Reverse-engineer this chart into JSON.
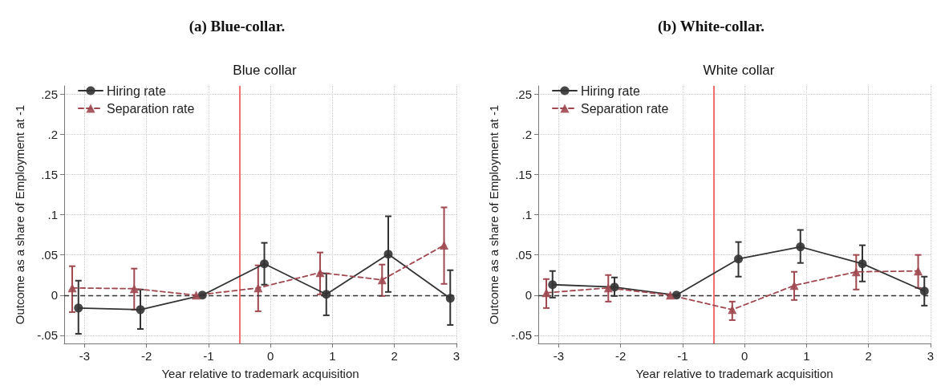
{
  "chart_data": [
    {
      "type": "line",
      "title": "(a) Blue-collar.",
      "subtitle": "Blue collar",
      "xlabel": "Year relative to trademark acquisition",
      "ylabel": "Outcome as a share of Employment at -1",
      "series": [
        {
          "name": "Hiring rate",
          "color": "#333333",
          "marker": "circle",
          "line_style": "solid",
          "x": [
            -3.1,
            -2.1,
            -1.1,
            -0.1,
            0.9,
            1.9,
            2.9
          ],
          "values": [
            -0.016,
            -0.018,
            0,
            0.039,
            0.001,
            0.051,
            -0.004
          ],
          "errors": [
            [
              -0.048,
              0.018
            ],
            [
              -0.042,
              0.007
            ],
            null,
            [
              0.013,
              0.065
            ],
            [
              -0.025,
              0.027
            ],
            [
              0.004,
              0.098
            ],
            [
              -0.037,
              0.031
            ]
          ]
        },
        {
          "name": "Separation rate",
          "color": "#a0484f",
          "marker": "triangle",
          "line_style": "dashed",
          "x": [
            -3.2,
            -2.2,
            -1.2,
            -0.2,
            0.8,
            1.8,
            2.8
          ],
          "values": [
            0.009,
            0.008,
            0,
            0.009,
            0.028,
            0.019,
            0.062
          ],
          "errors": [
            [
              -0.021,
              0.036
            ],
            [
              -0.018,
              0.033
            ],
            null,
            [
              -0.02,
              0.037
            ],
            [
              0.001,
              0.053
            ],
            [
              -0.001,
              0.038
            ],
            [
              0.014,
              0.109
            ]
          ]
        }
      ],
      "xlim": [
        -3.33,
        3
      ],
      "xticks": [
        -3,
        -2,
        -1,
        0,
        1,
        2,
        3
      ],
      "ylim": [
        -0.06,
        0.26
      ],
      "yticks": [
        {
          "value": -0.05,
          "label": "-.05"
        },
        0,
        {
          "value": 0.05,
          "label": ".05"
        },
        {
          "value": 0.1,
          "label": ".1"
        },
        {
          "value": 0.15,
          "label": ".15"
        },
        {
          "value": 0.2,
          "label": ".2"
        },
        {
          "value": 0.25,
          "label": ".25"
        }
      ],
      "ref_lines": [
        {
          "axis": "y",
          "value": 0,
          "color": "#333333",
          "line_style": "dashed"
        },
        {
          "axis": "x",
          "value": -0.5,
          "color": "#f07070",
          "line_style": "solid"
        }
      ],
      "grid": true,
      "legend": "top left"
    },
    {
      "type": "line",
      "title": "(b) White-collar.",
      "subtitle": "White collar",
      "xlabel": "Year relative to trademark acquisition",
      "ylabel": "Outcome as a share of Employment at -1",
      "series": [
        {
          "name": "Hiring rate",
          "color": "#333333",
          "marker": "circle",
          "line_style": "solid",
          "x": [
            -3.1,
            -2.1,
            -1.1,
            -0.1,
            0.9,
            1.9,
            2.9
          ],
          "values": [
            0.013,
            0.01,
            0,
            0.045,
            0.06,
            0.039,
            0.005
          ],
          "errors": [
            [
              -0.003,
              0.03
            ],
            [
              -0.001,
              0.022
            ],
            null,
            [
              0.023,
              0.066
            ],
            [
              0.04,
              0.081
            ],
            [
              0.017,
              0.062
            ],
            [
              -0.013,
              0.023
            ]
          ]
        },
        {
          "name": "Separation rate",
          "color": "#a0484f",
          "marker": "triangle",
          "line_style": "dashed",
          "x": [
            -3.2,
            -2.2,
            -1.2,
            -0.2,
            0.8,
            1.8,
            2.8
          ],
          "values": [
            0.003,
            0.009,
            0,
            -0.018,
            0.012,
            0.029,
            0.03
          ],
          "errors": [
            [
              -0.016,
              0.02
            ],
            [
              -0.008,
              0.025
            ],
            null,
            [
              -0.031,
              -0.008
            ],
            [
              -0.006,
              0.029
            ],
            [
              0.007,
              0.05
            ],
            [
              0.009,
              0.05
            ]
          ]
        }
      ],
      "xlim": [
        -3.33,
        3
      ],
      "xticks": [
        -3,
        -2,
        -1,
        0,
        1,
        2,
        3
      ],
      "ylim": [
        -0.06,
        0.26
      ],
      "yticks": [
        {
          "value": -0.05,
          "label": "-.05"
        },
        0,
        {
          "value": 0.05,
          "label": ".05"
        },
        {
          "value": 0.1,
          "label": ".1"
        },
        {
          "value": 0.15,
          "label": ".15"
        },
        {
          "value": 0.2,
          "label": ".2"
        },
        {
          "value": 0.25,
          "label": ".25"
        }
      ],
      "ref_lines": [
        {
          "axis": "y",
          "value": 0,
          "color": "#333333",
          "line_style": "dashed"
        },
        {
          "axis": "x",
          "value": -0.5,
          "color": "#f07070",
          "line_style": "solid"
        }
      ],
      "grid": true,
      "legend": "top left"
    }
  ]
}
